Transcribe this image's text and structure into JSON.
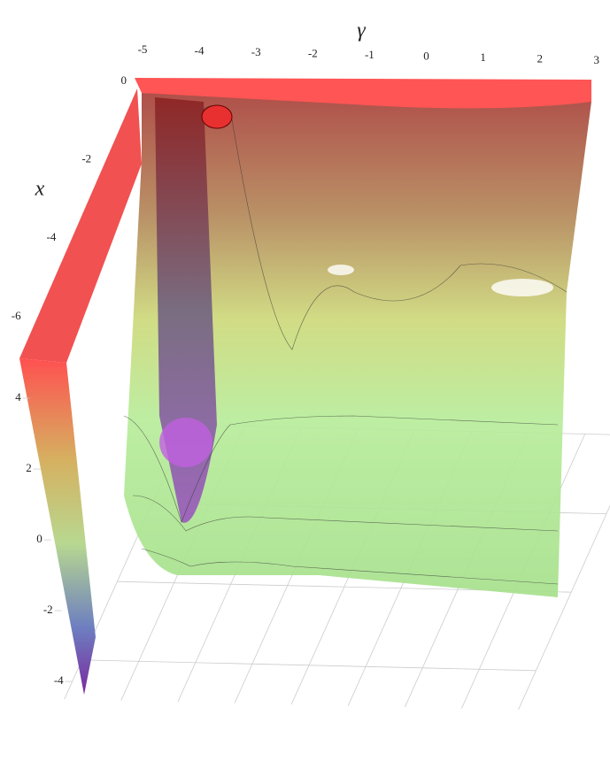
{
  "chart_data": {
    "type": "surface3d",
    "x_label": "γ",
    "y_label": "x",
    "xlim": [
      -5,
      3
    ],
    "xticks": [
      -5,
      -4,
      -3,
      -2,
      -1,
      0,
      1,
      2,
      3
    ],
    "ylim": [
      0,
      -7
    ],
    "yticks": [
      0,
      -2,
      -4,
      -6
    ],
    "zlim": [
      -4.5,
      5
    ],
    "zticks": [
      4,
      2,
      0,
      -2,
      -4
    ],
    "grid": true
  }
}
